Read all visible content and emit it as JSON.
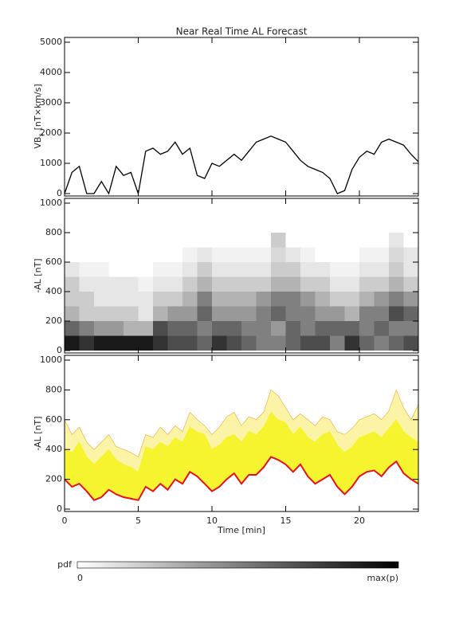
{
  "chart_data": [
    {
      "type": "line",
      "title": "Near Real Time AL Forecast",
      "ylabel": {
        "text": "VB",
        "sub": "s",
        "unit": "[nT×km/s]"
      },
      "x": [
        0,
        0.5,
        1,
        1.5,
        2,
        2.5,
        3,
        3.5,
        4,
        4.5,
        5,
        5.5,
        6,
        6.5,
        7,
        7.5,
        8,
        8.5,
        9,
        9.5,
        10,
        10.5,
        11,
        11.5,
        12,
        12.5,
        13,
        13.5,
        14,
        14.5,
        15,
        15.5,
        16,
        16.5,
        17,
        17.5,
        18,
        18.5,
        19,
        19.5,
        20,
        20.5,
        21,
        21.5,
        22,
        22.5,
        23,
        23.5,
        24
      ],
      "series": [
        {
          "color": "#000000",
          "values": [
            0,
            700,
            900,
            0,
            0,
            400,
            0,
            900,
            600,
            700,
            0,
            1400,
            1500,
            1300,
            1400,
            1700,
            1300,
            1500,
            600,
            500,
            1000,
            900,
            1100,
            1300,
            1100,
            1400,
            1700,
            1800,
            1900,
            1800,
            1700,
            1400,
            1100,
            900,
            800,
            700,
            500,
            0,
            100,
            800,
            1200,
            1400,
            1300,
            1700,
            1800,
            1700,
            1600,
            1300,
            1050
          ]
        }
      ],
      "xlim": [
        0,
        24
      ],
      "xticks": [
        0,
        5,
        10,
        15,
        20
      ],
      "ylim": [
        0,
        5000
      ],
      "yticks": [
        0,
        1000,
        2000,
        3000,
        4000,
        5000
      ]
    },
    {
      "type": "heatmap",
      "ylabel": "-AL [nT]",
      "xbins": [
        0,
        1,
        2,
        3,
        4,
        5,
        6,
        7,
        8,
        9,
        10,
        11,
        12,
        13,
        14,
        15,
        16,
        17,
        18,
        19,
        20,
        21,
        22,
        23,
        24
      ],
      "ybins": [
        0,
        100,
        200,
        300,
        400,
        500,
        600,
        700,
        800
      ],
      "z": [
        [
          0.9,
          0.8,
          0.9,
          0.9,
          0.9,
          0.9,
          0.8,
          0.7,
          0.7,
          0.6,
          0.8,
          0.7,
          0.6,
          0.5,
          0.5,
          0.6,
          0.7,
          0.7,
          0.5,
          0.8,
          0.6,
          0.5,
          0.6,
          0.7
        ],
        [
          0.6,
          0.5,
          0.4,
          0.4,
          0.3,
          0.3,
          0.7,
          0.6,
          0.6,
          0.5,
          0.6,
          0.6,
          0.5,
          0.5,
          0.4,
          0.6,
          0.5,
          0.6,
          0.6,
          0.6,
          0.5,
          0.6,
          0.5,
          0.5
        ],
        [
          0.3,
          0.2,
          0.2,
          0.2,
          0.2,
          0.1,
          0.3,
          0.4,
          0.4,
          0.6,
          0.4,
          0.4,
          0.4,
          0.5,
          0.6,
          0.5,
          0.5,
          0.4,
          0.4,
          0.3,
          0.5,
          0.5,
          0.7,
          0.6
        ],
        [
          0.2,
          0.2,
          0.1,
          0.1,
          0.1,
          0.1,
          0.2,
          0.2,
          0.3,
          0.5,
          0.3,
          0.3,
          0.3,
          0.4,
          0.5,
          0.5,
          0.4,
          0.3,
          0.2,
          0.2,
          0.3,
          0.4,
          0.5,
          0.4
        ],
        [
          0.2,
          0.1,
          0.1,
          0.1,
          0.1,
          0.05,
          0.1,
          0.1,
          0.2,
          0.3,
          0.2,
          0.2,
          0.2,
          0.2,
          0.3,
          0.3,
          0.2,
          0.2,
          0.1,
          0.1,
          0.2,
          0.2,
          0.3,
          0.2
        ],
        [
          0.1,
          0.05,
          0.05,
          0,
          0,
          0,
          0.05,
          0.05,
          0.1,
          0.2,
          0.1,
          0.1,
          0.1,
          0.1,
          0.2,
          0.2,
          0.1,
          0.1,
          0.05,
          0.05,
          0.1,
          0.1,
          0.2,
          0.1
        ],
        [
          0,
          0,
          0,
          0,
          0,
          0,
          0,
          0,
          0.05,
          0.1,
          0.05,
          0.05,
          0.05,
          0.05,
          0.15,
          0.1,
          0.05,
          0,
          0,
          0,
          0.05,
          0.05,
          0.15,
          0.1
        ],
        [
          0,
          0,
          0,
          0,
          0,
          0,
          0,
          0,
          0,
          0,
          0,
          0,
          0,
          0,
          0.2,
          0,
          0,
          0,
          0,
          0,
          0,
          0,
          0.1,
          0
        ]
      ],
      "xlim": [
        0,
        24
      ],
      "xticks": [
        0,
        5,
        10,
        15,
        20
      ],
      "ylim": [
        0,
        1000
      ],
      "yticks": [
        0,
        200,
        400,
        600,
        800,
        1000
      ],
      "zlabel": "pdf",
      "zlim": [
        0,
        1
      ],
      "zticks": [
        0,
        {
          "value": 1,
          "label": "max(p)"
        }
      ]
    },
    {
      "type": "band",
      "ylabel": "-AL [nT]",
      "xlabel": "Time [min]",
      "x": [
        0,
        0.5,
        1,
        1.5,
        2,
        2.5,
        3,
        3.5,
        4,
        4.5,
        5,
        5.5,
        6,
        6.5,
        7,
        7.5,
        8,
        8.5,
        9,
        9.5,
        10,
        10.5,
        11,
        11.5,
        12,
        12.5,
        13,
        13.5,
        14,
        14.5,
        15,
        15.5,
        16,
        16.5,
        17,
        17.5,
        18,
        18.5,
        19,
        19.5,
        20,
        20.5,
        21,
        21.5,
        22,
        22.5,
        23,
        23.5,
        24
      ],
      "series": [
        {
          "color": "#fbf4a6",
          "edge": "#f0b24a",
          "values": [
            600,
            500,
            550,
            450,
            400,
            450,
            500,
            420,
            400,
            380,
            350,
            500,
            480,
            550,
            500,
            560,
            520,
            650,
            600,
            560,
            500,
            550,
            620,
            650,
            560,
            620,
            600,
            650,
            800,
            760,
            680,
            600,
            640,
            600,
            560,
            620,
            600,
            520,
            500,
            540,
            600,
            620,
            640,
            600,
            660,
            800,
            680,
            600,
            700
          ]
        },
        {
          "color": "#f6f42e",
          "values": [
            400,
            380,
            450,
            350,
            300,
            350,
            400,
            330,
            300,
            280,
            250,
            420,
            400,
            450,
            420,
            480,
            450,
            550,
            520,
            500,
            400,
            430,
            480,
            500,
            450,
            520,
            500,
            550,
            650,
            600,
            580,
            500,
            550,
            480,
            450,
            500,
            520,
            430,
            380,
            420,
            480,
            500,
            520,
            480,
            540,
            600,
            520,
            480,
            450
          ]
        },
        {
          "color": "#e8111b",
          "values": [
            200,
            150,
            170,
            120,
            60,
            80,
            130,
            100,
            80,
            70,
            60,
            150,
            120,
            170,
            130,
            200,
            170,
            250,
            220,
            170,
            120,
            150,
            200,
            240,
            170,
            230,
            230,
            280,
            350,
            330,
            300,
            250,
            300,
            220,
            170,
            200,
            230,
            150,
            100,
            150,
            220,
            250,
            260,
            220,
            280,
            320,
            240,
            200,
            170
          ]
        }
      ],
      "xlim": [
        0,
        24
      ],
      "xticks": [
        0,
        5,
        10,
        15,
        20
      ],
      "ylim": [
        0,
        1000
      ],
      "yticks": [
        0,
        200,
        400,
        600,
        800,
        1000
      ]
    }
  ]
}
